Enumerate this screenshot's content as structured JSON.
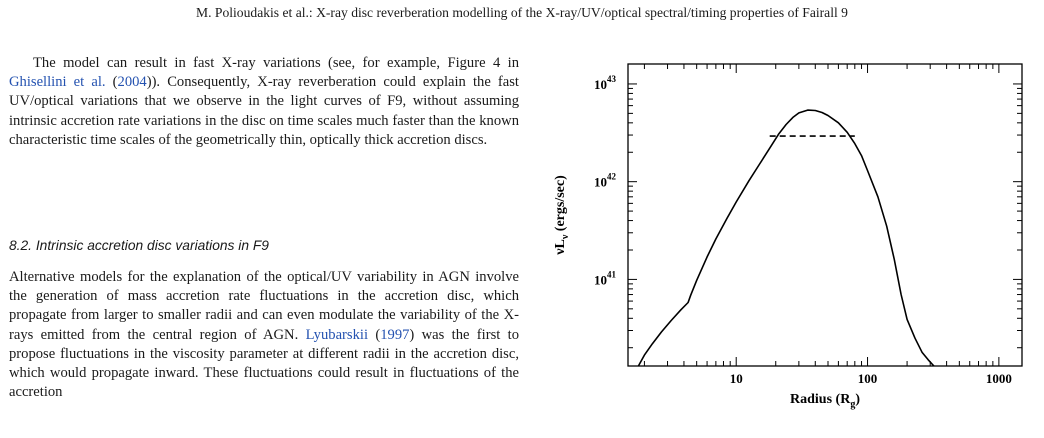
{
  "header": "M. Polioudakis et al.: X-ray disc reverberation modelling of the X-ray/UV/optical spectral/timing properties of Fairall 9",
  "paragraph1": {
    "t1": "The model can result in fast X-ray variations (see, for example, Figure 4 in ",
    "cite1": "Ghisellini et al.",
    "t2": " (",
    "year1": "2004",
    "t3": ")). Consequently, X-ray reverberation could explain the fast UV/optical variations that we observe in the light curves of F9, without assuming intrinsic accretion rate variations in the disc on time scales much faster than the known characteristic time scales of the geometrically thin, optically thick accretion discs."
  },
  "section_heading": "8.2. Intrinsic accretion disc variations in F9",
  "paragraph2": {
    "t1": "Alternative models for the explanation of the optical/UV variability in AGN involve the generation of mass accretion rate fluctuations in the accretion disc, which propagate from larger to smaller radii and can even modulate the variability of the X-rays emitted from the central region of AGN. ",
    "cite1": "Lyubarskii",
    "t2": " (",
    "year1": "1997",
    "t3": ") was the first to propose fluctuations in the viscosity parameter at different radii in the accretion disc, which would propagate inward. These fluctuations could result in fluctuations of the accretion"
  },
  "colors": {
    "link": "#2452b0",
    "text": "#1a1a1a"
  },
  "chart_data": {
    "type": "line",
    "xlabel": "Radius (R",
    "xlabel_sub": "g",
    "xlabel_close": ")",
    "ylabel": "νL",
    "ylabel_sub": "ν",
    "ylabel_unit": " (ergs/sec)",
    "x_log": true,
    "y_log": true,
    "xlim": [
      1.5,
      1500
    ],
    "ylim": [
      1.3e+40,
      1.6e+43
    ],
    "x_ticks": [
      {
        "value": 10,
        "label": "10"
      },
      {
        "value": 100,
        "label": "100"
      },
      {
        "value": 1000,
        "label": "1000"
      }
    ],
    "y_ticks": [
      {
        "value": 1e+41,
        "mant": "10",
        "exp": "41"
      },
      {
        "value": 1e+42,
        "mant": "10",
        "exp": "42"
      },
      {
        "value": 1e+43,
        "mant": "10",
        "exp": "43"
      }
    ],
    "series": [
      {
        "style": "solid",
        "x": [
          1.8,
          2,
          2.3,
          2.7,
          3.2,
          3.8,
          4.3,
          4.5,
          5,
          6,
          7,
          8.5,
          10,
          12.5,
          15,
          18,
          21,
          24,
          27,
          30,
          35,
          40,
          45,
          50,
          60,
          70,
          80,
          90,
          100,
          120,
          140,
          160,
          180,
          200,
          230,
          260,
          290,
          320
        ],
        "y": [
          1.3e+40,
          1.68e+40,
          2.2e+40,
          2.9e+40,
          3.8e+40,
          4.9e+40,
          5.8e+40,
          6.9e+40,
          9.8e+40,
          1.7e+41,
          2.6e+41,
          4.2e+41,
          6.2e+41,
          1.02e+42,
          1.5e+42,
          2.2e+42,
          3.05e+42,
          3.85e+42,
          4.55e+42,
          5.05e+42,
          5.4e+42,
          5.35e+42,
          5.1e+42,
          4.75e+42,
          4e+42,
          3.2e+42,
          2.45e+42,
          1.85e+42,
          1.3e+42,
          7e+41,
          3.5e+41,
          1.6e+41,
          7e+40,
          3.9e+40,
          2.5e+40,
          1.8e+40,
          1.5e+40,
          1.3e+40
        ]
      },
      {
        "style": "dashed",
        "x": [
          18,
          80
        ],
        "y": [
          2.93e+42,
          2.93e+42
        ]
      }
    ]
  }
}
